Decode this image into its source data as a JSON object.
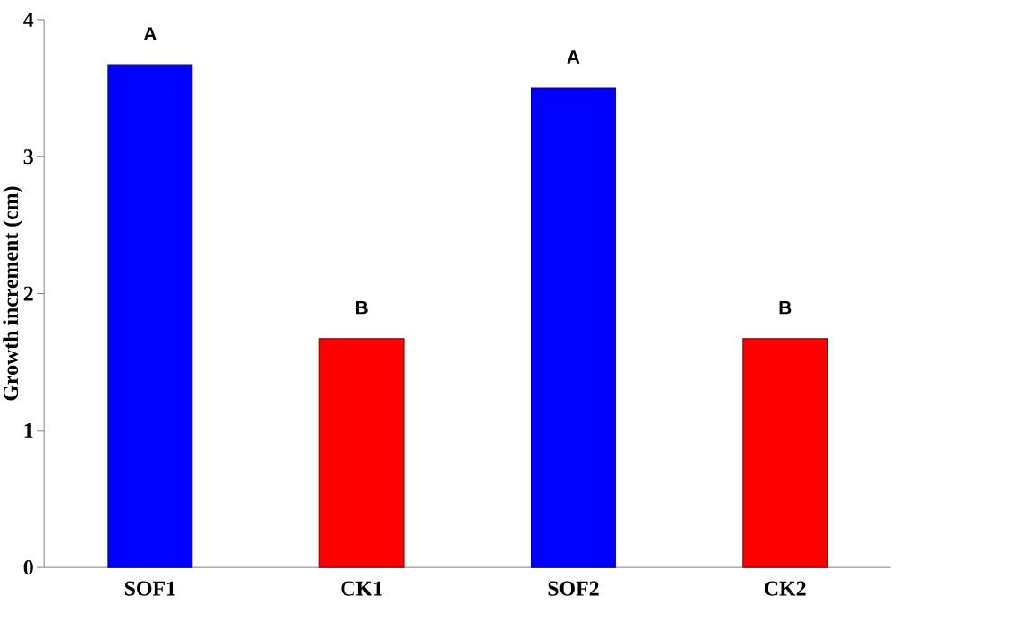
{
  "chart_data": {
    "type": "bar",
    "ylabel": "Growth increment (cm)",
    "categories": [
      "SOF1",
      "CK1",
      "SOF2",
      "CK2"
    ],
    "values": [
      3.67,
      1.67,
      3.5,
      1.67
    ],
    "colors": [
      "#0000ff",
      "#ff0000",
      "#0000ff",
      "#ff0000"
    ],
    "ylim": [
      0,
      4
    ],
    "yticks": [
      0,
      1,
      2,
      3,
      4
    ],
    "annotations": [
      "A",
      "B",
      "A",
      "B"
    ]
  }
}
